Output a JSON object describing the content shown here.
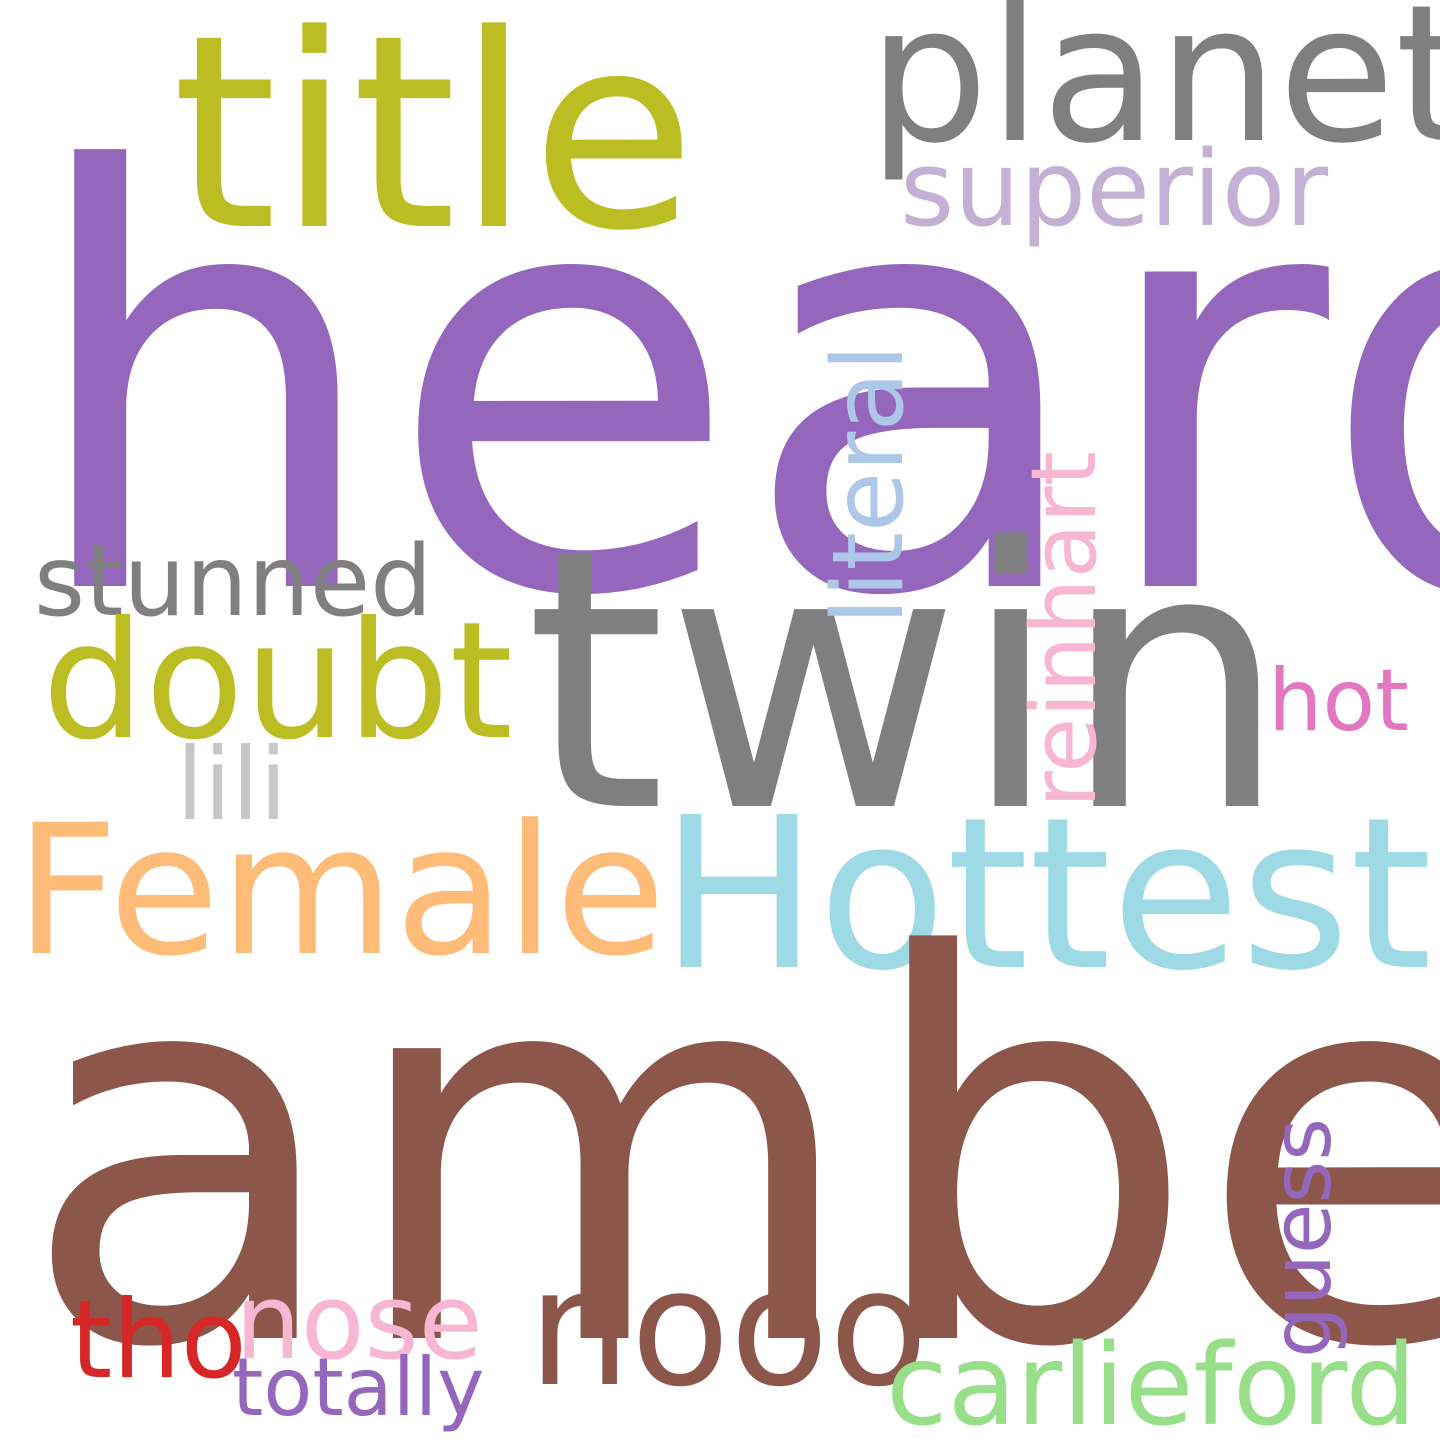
{
  "words": {
    "heard": {
      "text": "heard",
      "color": "#9467bd"
    },
    "amber": {
      "text": "amber",
      "color": "#8c564b"
    },
    "twin": {
      "text": "twin",
      "color": "#7f7f7f"
    },
    "title": {
      "text": "title",
      "color": "#bcbd22"
    },
    "planet": {
      "text": "planet",
      "color": "#7f7f7f"
    },
    "superior": {
      "text": "superior",
      "color": "#c5b0d5"
    },
    "hottest": {
      "text": "Hottest",
      "color": "#9edae5"
    },
    "female": {
      "text": "Female",
      "color": "#ffbb78"
    },
    "doubt": {
      "text": "doubt",
      "color": "#bcbd22"
    },
    "stunned": {
      "text": "stunned",
      "color": "#7f7f7f"
    },
    "lili": {
      "text": "lili",
      "color": "#c7c7c7"
    },
    "literal": {
      "text": "literal",
      "color": "#aec7e8"
    },
    "reinhart": {
      "text": "reinhart",
      "color": "#f7b6d2"
    },
    "hot": {
      "text": "hot",
      "color": "#e377c2"
    },
    "nooo": {
      "text": "nooo",
      "color": "#8c564b"
    },
    "guess": {
      "text": "guess",
      "color": "#9467bd"
    },
    "carlieford": {
      "text": "carlieford",
      "color": "#98df8a"
    },
    "nose": {
      "text": "nose",
      "color": "#f7b6d2"
    },
    "tho": {
      "text": "tho",
      "color": "#d62728"
    },
    "totally": {
      "text": "totally",
      "color": "#9467bd"
    }
  }
}
